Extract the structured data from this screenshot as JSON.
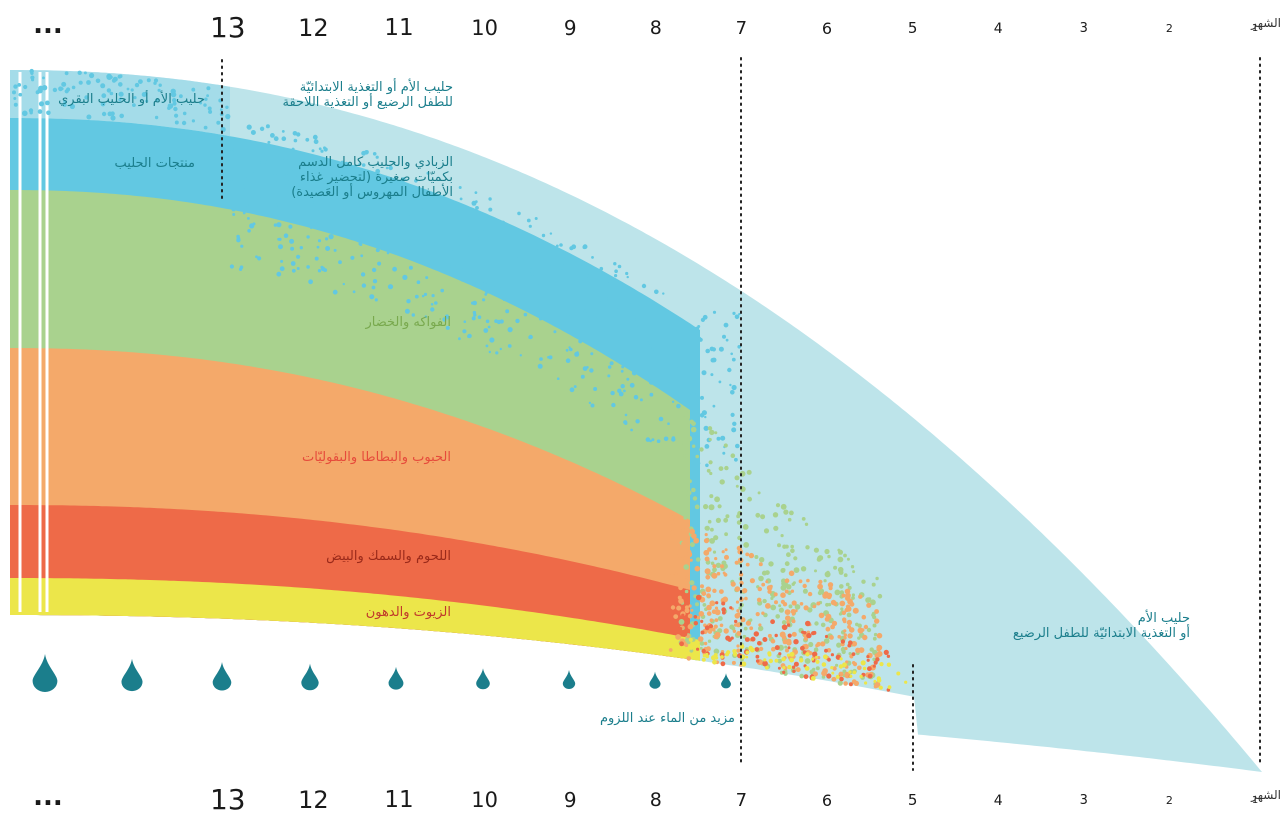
{
  "axis": {
    "title": "الشهر",
    "months": [
      "1",
      "2",
      "3",
      "4",
      "5",
      "6",
      "7",
      "8",
      "9",
      "10",
      "11",
      "12",
      "13"
    ],
    "continuation": "..."
  },
  "labels": {
    "milk_or_cow_milk": "حليب الأم أو الحليب البقري",
    "breastmilk_followon": "حليب الأم أو التغذية الابتدائيّة\nللطفل الرضيع أو التغذية اللاحقة",
    "dairy_products": "منتجات الحليب",
    "yogurt_whole_milk": "الزبادي والحليب كامل الدسم\nبكميّات صغيرة (لتحضير غذاء\nالأطفال المهروس أو العَصيدة)",
    "fruits_vegetables": "الفواكه والخضار",
    "grains_potatoes_legumes": "الحبوب والبطاطا والبقوليّات",
    "meat_fish_eggs": "اللحوم والسمك والبيض",
    "oils_fats": "الزيوت والدهون",
    "breastmilk_starter": "حليب الأم\nأو التغذية الابتدائيّة للطفل الرضيع",
    "more_water": "مزيد من الماء عند اللزوم"
  },
  "colors": {
    "light_blue": "#bde4ea",
    "cyan": "#62c8e2",
    "green": "#a9d28e",
    "orange": "#f4a96a",
    "red": "#ee6a48",
    "yellow": "#ece64a",
    "drop": "#1b7e8c",
    "label_green": "#79a94e",
    "label_red": "#e64b3b",
    "label_darkred": "#9b2a1a",
    "label_teal": "#1b7e8c"
  }
}
